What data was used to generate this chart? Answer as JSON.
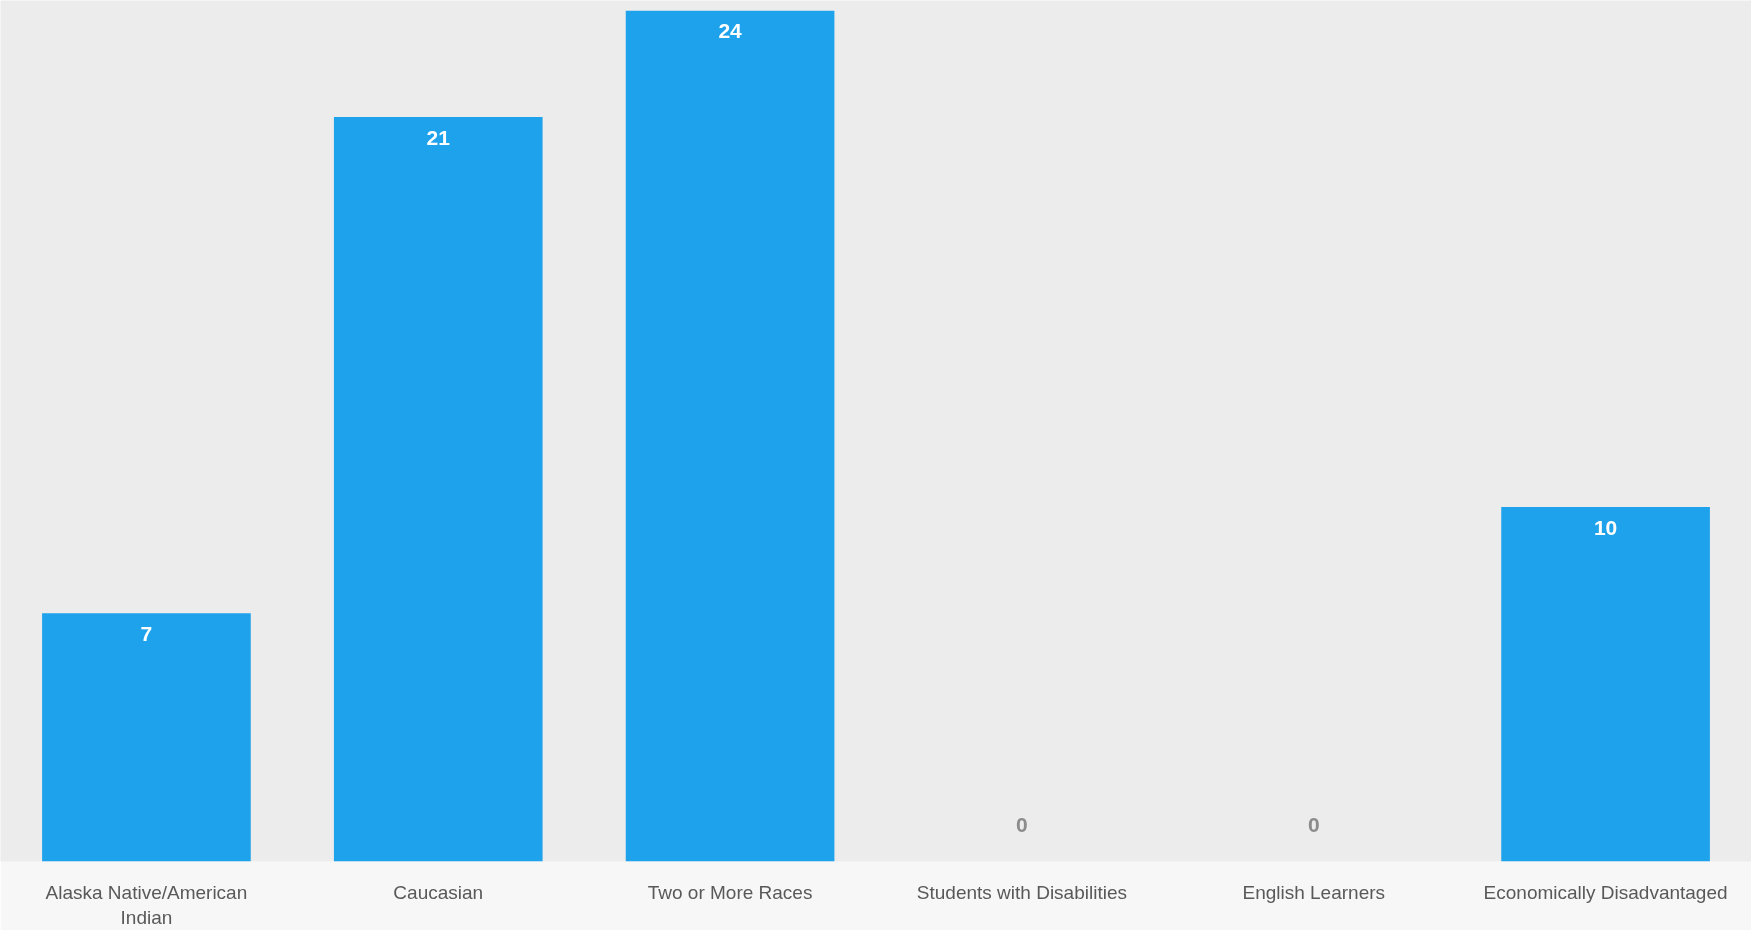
{
  "chart_data": {
    "type": "bar",
    "categories": [
      "Alaska Native/American Indian",
      "Caucasian",
      "Two or More Races",
      "Students with Disabilities",
      "English Learners",
      "Economically Disadvantaged"
    ],
    "values": [
      7,
      21,
      24,
      0,
      0,
      10
    ],
    "color": "#1fa2ec",
    "data_labels": true,
    "grid": false
  }
}
